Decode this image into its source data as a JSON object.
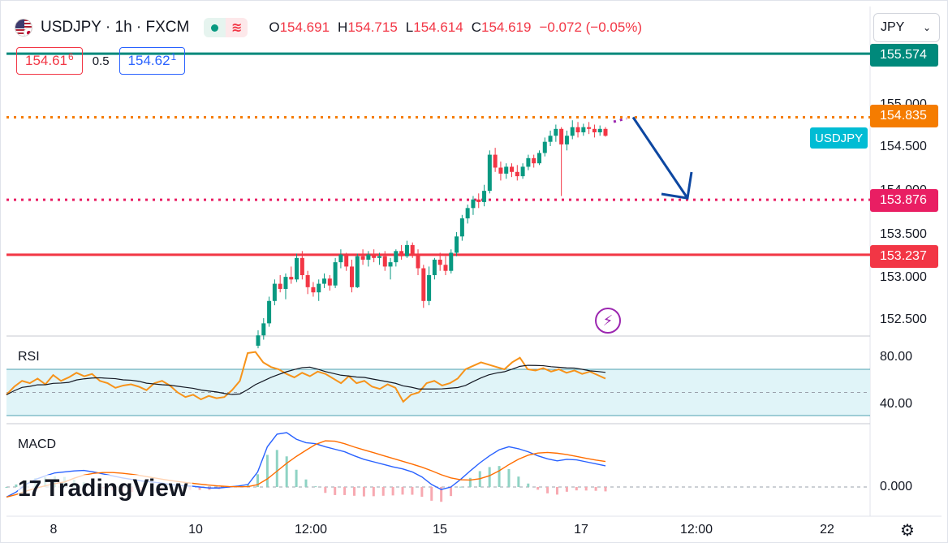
{
  "header": {
    "symbol": "USDJPY · 1h · FXCM",
    "ohlc": [
      {
        "k": "O",
        "v": "154.691"
      },
      {
        "k": "H",
        "v": "154.715"
      },
      {
        "k": "L",
        "v": "154.614"
      },
      {
        "k": "C",
        "v": "154.619"
      }
    ],
    "change": "−0.072 (−0.05%)",
    "bid": "154.61",
    "bid_sup": "6",
    "spread": "0.5",
    "ask": "154.62",
    "ask_sup": "1",
    "currency": "JPY"
  },
  "colors": {
    "up": "#089981",
    "down": "#f23645",
    "accent_orange": "#f57c00",
    "accent_pink": "#e91e63",
    "teal_line": "#00897b",
    "red_line": "#f23645",
    "arrow": "#0d47a1",
    "rsi_line": "#f7931a",
    "rsi_ma": "#131722",
    "macd_line": "#2962ff",
    "signal_line": "#ff6d00"
  },
  "labels": {
    "symbol_tag": "USDJPY",
    "rsi": "RSI",
    "macd": "MACD",
    "logo": "TradingView",
    "logo_icon": "tradingview-logo-icon",
    "settings_icon": "gear-icon",
    "bolt_icon": "lightning-icon"
  },
  "chart_data": {
    "type": "candlestick",
    "timeframe": "1h",
    "ylim": [
      152.28,
      155.8
    ],
    "y_ticks": [
      "155.000",
      "154.500",
      "154.000",
      "153.500",
      "153.000",
      "152.500"
    ],
    "x_ticks": [
      "8",
      "10",
      "12:00",
      "15",
      "17",
      "12:00",
      "22"
    ],
    "levels": [
      {
        "value": 155.574,
        "label": "155.574",
        "style": "solid",
        "color": "#00897b"
      },
      {
        "value": 154.835,
        "label": "154.835",
        "style": "dotted",
        "color": "#f57c00"
      },
      {
        "value": 153.876,
        "label": "153.876",
        "style": "dotted",
        "color": "#e91e63"
      },
      {
        "value": 153.237,
        "label": "153.237",
        "style": "solid",
        "color": "#f23645"
      }
    ],
    "forecast_arrow": {
      "from": 154.835,
      "to": 153.876
    },
    "candles": [
      [
        152.18,
        152.36,
        152.15,
        152.3
      ],
      [
        152.3,
        152.5,
        152.25,
        152.44
      ],
      [
        152.44,
        152.75,
        152.4,
        152.7
      ],
      [
        152.7,
        152.95,
        152.65,
        152.9
      ],
      [
        152.9,
        153.0,
        152.8,
        152.84
      ],
      [
        152.84,
        153.02,
        152.72,
        152.98
      ],
      [
        152.98,
        153.1,
        152.9,
        152.95
      ],
      [
        152.95,
        153.25,
        152.92,
        153.2
      ],
      [
        153.2,
        153.28,
        152.95,
        153.0
      ],
      [
        153.0,
        153.05,
        152.78,
        152.86
      ],
      [
        152.86,
        152.92,
        152.75,
        152.8
      ],
      [
        152.8,
        152.95,
        152.7,
        152.9
      ],
      [
        152.9,
        153.02,
        152.85,
        152.96
      ],
      [
        152.96,
        153.0,
        152.82,
        152.88
      ],
      [
        152.88,
        153.2,
        152.85,
        153.15
      ],
      [
        153.15,
        153.3,
        153.08,
        153.24
      ],
      [
        153.24,
        153.26,
        153.05,
        153.1
      ],
      [
        153.1,
        153.18,
        152.8,
        152.86
      ],
      [
        152.86,
        153.25,
        152.85,
        153.22
      ],
      [
        153.22,
        153.3,
        153.12,
        153.18
      ],
      [
        153.18,
        153.28,
        153.1,
        153.24
      ],
      [
        153.24,
        153.3,
        153.15,
        153.2
      ],
      [
        153.2,
        153.26,
        153.12,
        153.22
      ],
      [
        153.22,
        153.28,
        153.05,
        153.1
      ],
      [
        153.1,
        153.2,
        152.95,
        153.15
      ],
      [
        153.15,
        153.3,
        153.1,
        153.28
      ],
      [
        153.28,
        153.35,
        153.18,
        153.22
      ],
      [
        153.22,
        153.4,
        153.2,
        153.35
      ],
      [
        153.35,
        153.38,
        153.2,
        153.25
      ],
      [
        153.25,
        153.3,
        153.0,
        153.08
      ],
      [
        153.08,
        153.12,
        152.62,
        152.7
      ],
      [
        152.7,
        153.1,
        152.65,
        153.0
      ],
      [
        153.0,
        153.2,
        152.95,
        153.18
      ],
      [
        153.18,
        153.26,
        153.05,
        153.12
      ],
      [
        153.12,
        153.22,
        153.0,
        153.05
      ],
      [
        153.05,
        153.3,
        153.02,
        153.26
      ],
      [
        153.26,
        153.5,
        153.22,
        153.45
      ],
      [
        153.45,
        153.7,
        153.4,
        153.66
      ],
      [
        153.66,
        153.82,
        153.6,
        153.78
      ],
      [
        153.78,
        153.92,
        153.7,
        153.88
      ],
      [
        153.88,
        153.95,
        153.78,
        153.85
      ],
      [
        153.85,
        154.05,
        153.8,
        153.98
      ],
      [
        153.98,
        154.45,
        153.95,
        154.4
      ],
      [
        154.4,
        154.48,
        154.2,
        154.25
      ],
      [
        154.25,
        154.32,
        154.1,
        154.18
      ],
      [
        154.18,
        154.3,
        154.12,
        154.26
      ],
      [
        154.26,
        154.3,
        154.14,
        154.2
      ],
      [
        154.2,
        154.28,
        154.1,
        154.15
      ],
      [
        154.15,
        154.3,
        154.12,
        154.26
      ],
      [
        154.26,
        154.4,
        154.22,
        154.36
      ],
      [
        154.36,
        154.4,
        154.25,
        154.3
      ],
      [
        154.3,
        154.45,
        154.28,
        154.42
      ],
      [
        154.42,
        154.6,
        154.38,
        154.55
      ],
      [
        154.55,
        154.68,
        154.5,
        154.62
      ],
      [
        154.62,
        154.75,
        154.55,
        154.7
      ],
      [
        154.7,
        154.72,
        153.92,
        154.52
      ],
      [
        154.52,
        154.68,
        154.45,
        154.62
      ],
      [
        154.62,
        154.8,
        154.58,
        154.72
      ],
      [
        154.72,
        154.78,
        154.6,
        154.66
      ],
      [
        154.66,
        154.76,
        154.62,
        154.72
      ],
      [
        154.72,
        154.78,
        154.64,
        154.7
      ],
      [
        154.7,
        154.75,
        154.6,
        154.66
      ],
      [
        154.66,
        154.74,
        154.62,
        154.7
      ],
      [
        154.7,
        154.72,
        154.61,
        154.62
      ]
    ],
    "panels": [
      {
        "name": "RSI",
        "y_ticks": [
          "80.00",
          "40.00"
        ],
        "band": [
          30,
          70
        ]
      },
      {
        "name": "MACD",
        "y_ticks": [
          "0.000"
        ]
      }
    ]
  }
}
